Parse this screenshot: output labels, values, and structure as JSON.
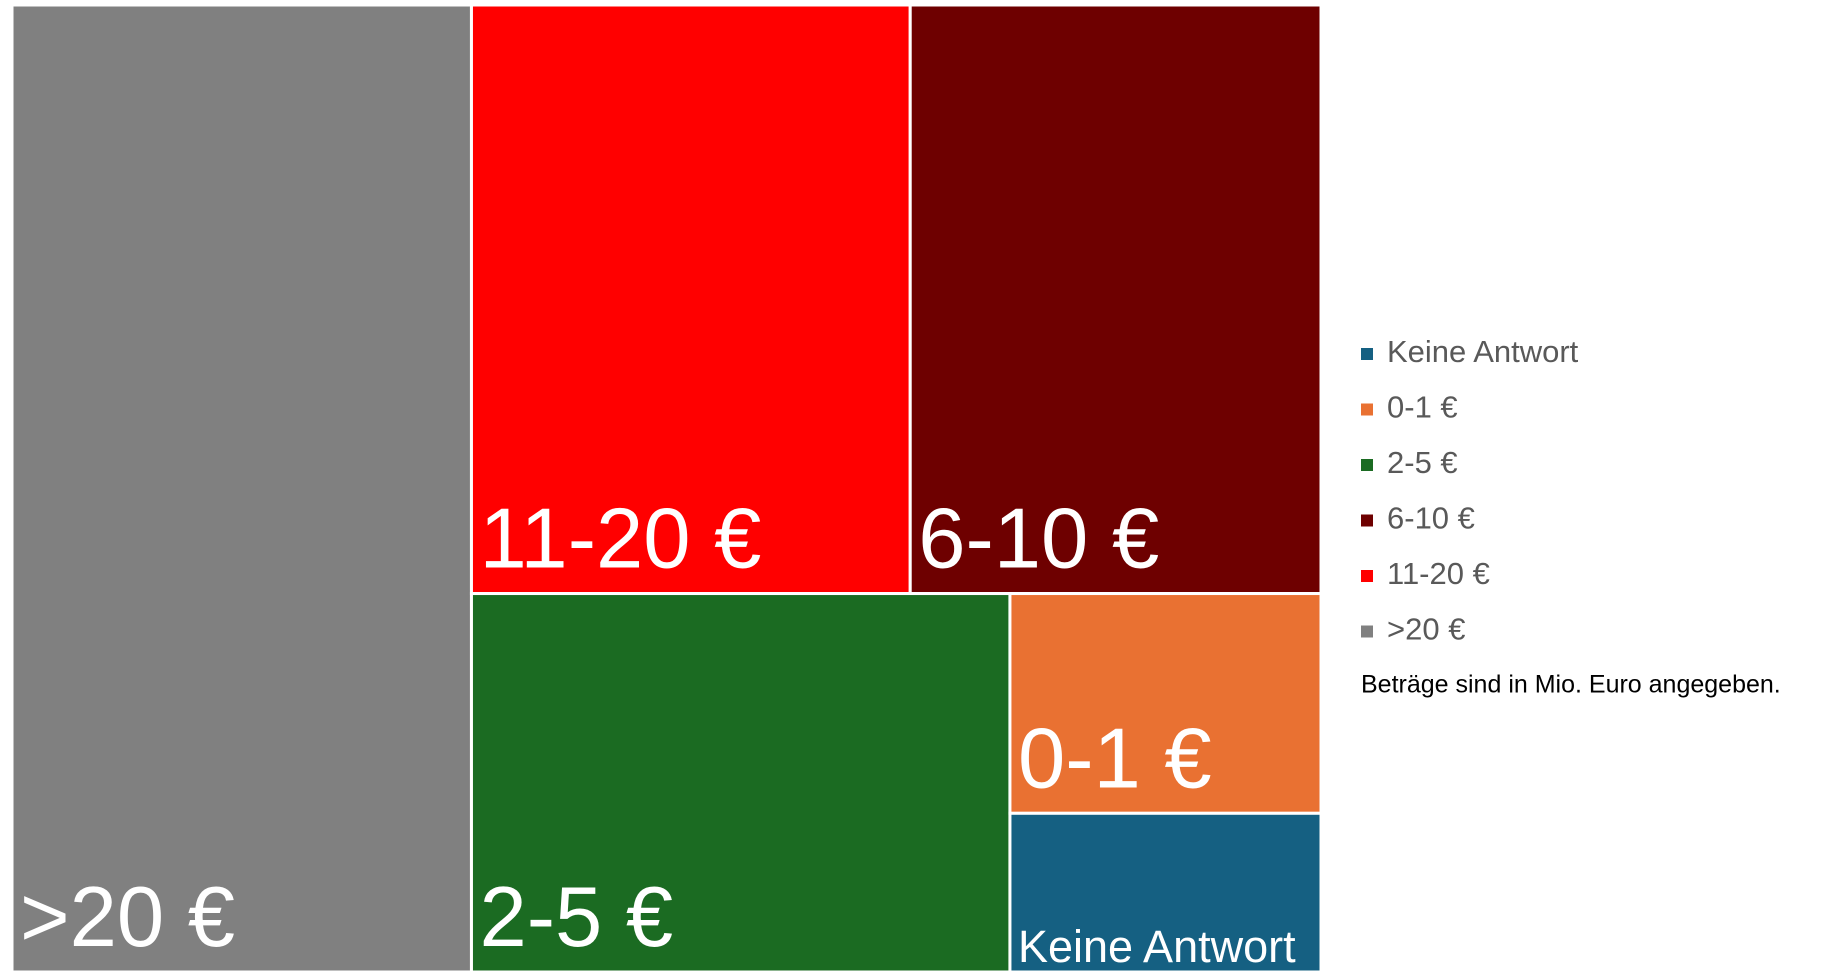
{
  "chart_data": {
    "type": "treemap",
    "categories": [
      ">20 €",
      "11-20 €",
      "6-10 €",
      "2-5 €",
      "0-1 €",
      "Keine Antwort"
    ],
    "values": [
      35.1,
      20.4,
      19.1,
      16.1,
      5.4,
      3.9
    ],
    "colors": [
      "#808080",
      "#ff0000",
      "#6e0000",
      "#1b6b22",
      "#e97132",
      "#156082"
    ],
    "note": "Beträge sind in Mio. Euro angegeben."
  }
}
